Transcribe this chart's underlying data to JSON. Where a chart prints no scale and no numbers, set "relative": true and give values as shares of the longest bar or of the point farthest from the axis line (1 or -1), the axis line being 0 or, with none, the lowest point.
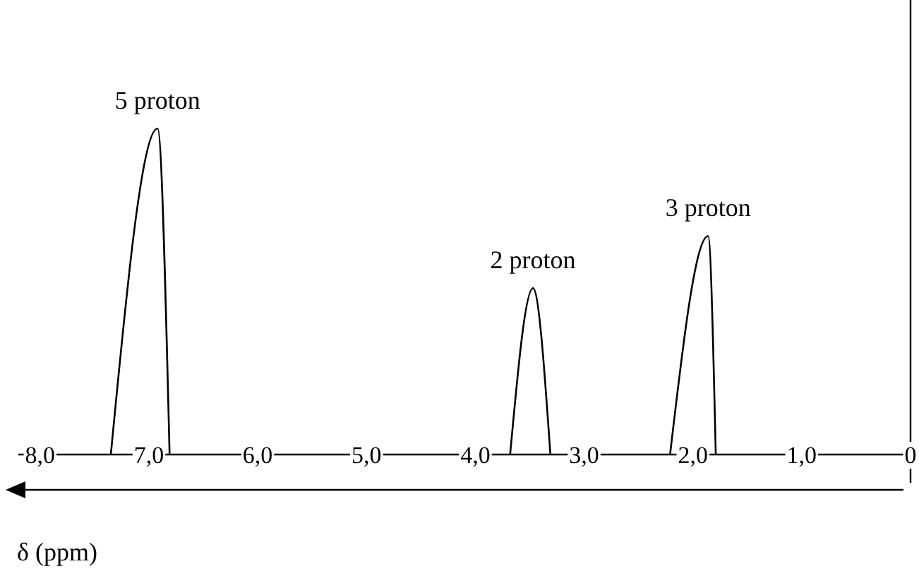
{
  "chart_data": {
    "type": "line",
    "relative": true,
    "xlabel": "δ (ppm)",
    "xlim": [
      8.2,
      0
    ],
    "xticks": [
      {
        "value": 8,
        "label": "8,0"
      },
      {
        "value": 7,
        "label": "7,0"
      },
      {
        "value": 6,
        "label": "6,0"
      },
      {
        "value": 5,
        "label": "5,0"
      },
      {
        "value": 4,
        "label": "4,0"
      },
      {
        "value": 3,
        "label": "3,0"
      },
      {
        "value": 2,
        "label": "2,0"
      },
      {
        "value": 1,
        "label": "1,0"
      },
      {
        "value": 0,
        "label": "0"
      }
    ],
    "series": [
      {
        "color": "#000000",
        "x": [
          7.35,
          6.92,
          6.81,
          5.0,
          3.68,
          3.47,
          3.31,
          2.8,
          2.21,
          1.86,
          1.79
        ],
        "values": [
          0,
          1,
          0,
          null,
          0,
          0.51,
          0,
          null,
          0,
          0.67,
          0
        ]
      }
    ],
    "annotations": [
      {
        "text": "5 proton",
        "x": 6.92,
        "y": 1
      },
      {
        "text": "2 proton",
        "x": 3.47,
        "y": 0.51
      },
      {
        "text": "3 proton",
        "x": 1.86,
        "y": 0.67
      }
    ],
    "ref_lines": [
      {
        "axis": "x",
        "value": 0
      }
    ],
    "grid": false,
    "marker": "none",
    "line_style": "solid"
  }
}
